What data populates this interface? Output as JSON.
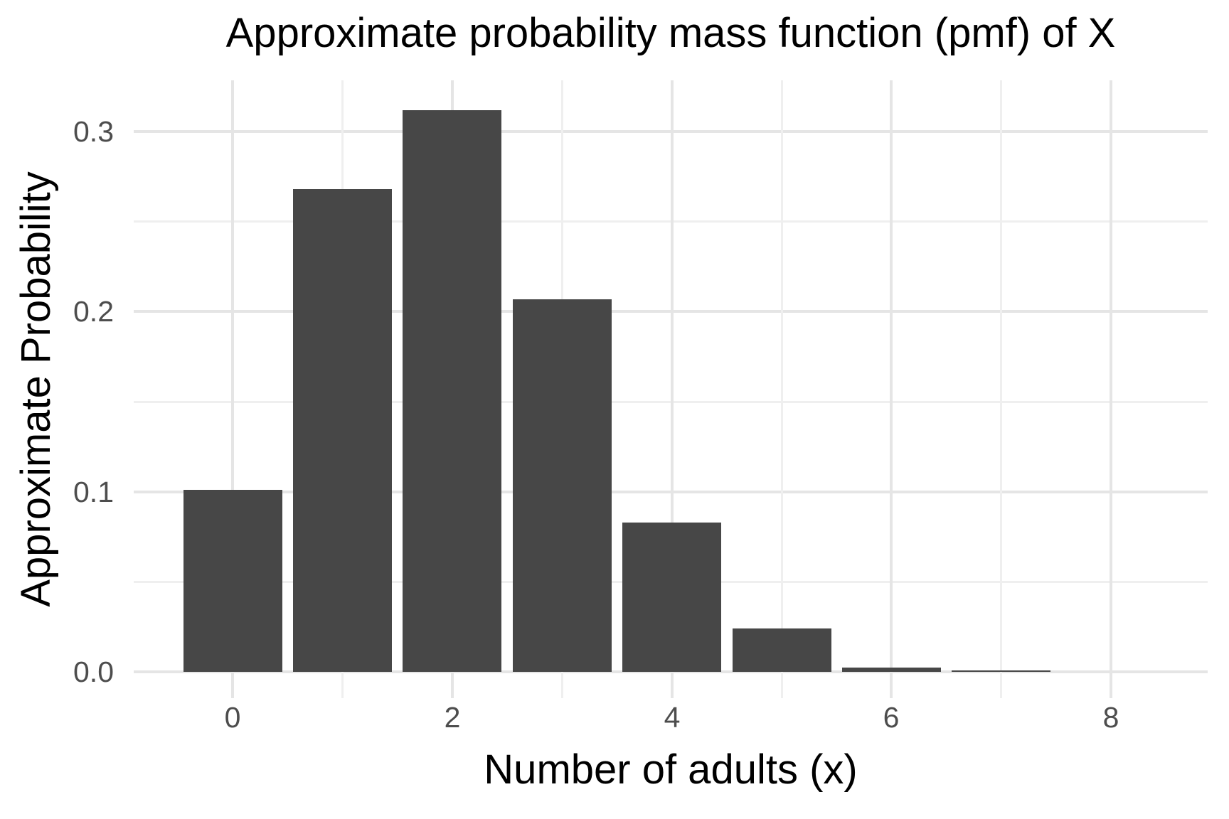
{
  "chart_data": {
    "type": "bar",
    "title": "Approximate probability mass function (pmf) of X",
    "xlabel": "Number of adults (x)",
    "ylabel": "Approximate Probability",
    "categories": [
      0,
      1,
      2,
      3,
      4,
      5,
      6,
      7
    ],
    "values": [
      0.101,
      0.268,
      0.312,
      0.207,
      0.083,
      0.024,
      0.0025,
      0.0008
    ],
    "bar_width": 0.9,
    "xlim": [
      -0.9,
      8.9
    ],
    "ylim": [
      -0.016,
      0.328
    ],
    "x_ticks": [
      0,
      2,
      4,
      6,
      8
    ],
    "x_tick_labels": [
      "0",
      "2",
      "4",
      "6",
      "8"
    ],
    "y_ticks": [
      0.0,
      0.1,
      0.2,
      0.3
    ],
    "y_tick_labels": [
      "0.0",
      "0.1",
      "0.2",
      "0.3"
    ],
    "x_gridlines": {
      "major": [
        0,
        2,
        4,
        6,
        8
      ],
      "minor": [
        1,
        3,
        5,
        7
      ]
    },
    "y_gridlines": {
      "major": [
        0.0,
        0.1,
        0.2,
        0.3
      ],
      "minor": [
        0.05,
        0.15,
        0.25
      ]
    },
    "grid": true,
    "legend": false,
    "colors": {
      "bar_fill": "#474747",
      "grid_major": "#e5e5e5",
      "grid_minor": "#efefef",
      "tick_label": "#4d4d4d",
      "title_text": "#000000",
      "background": "#ffffff"
    }
  }
}
